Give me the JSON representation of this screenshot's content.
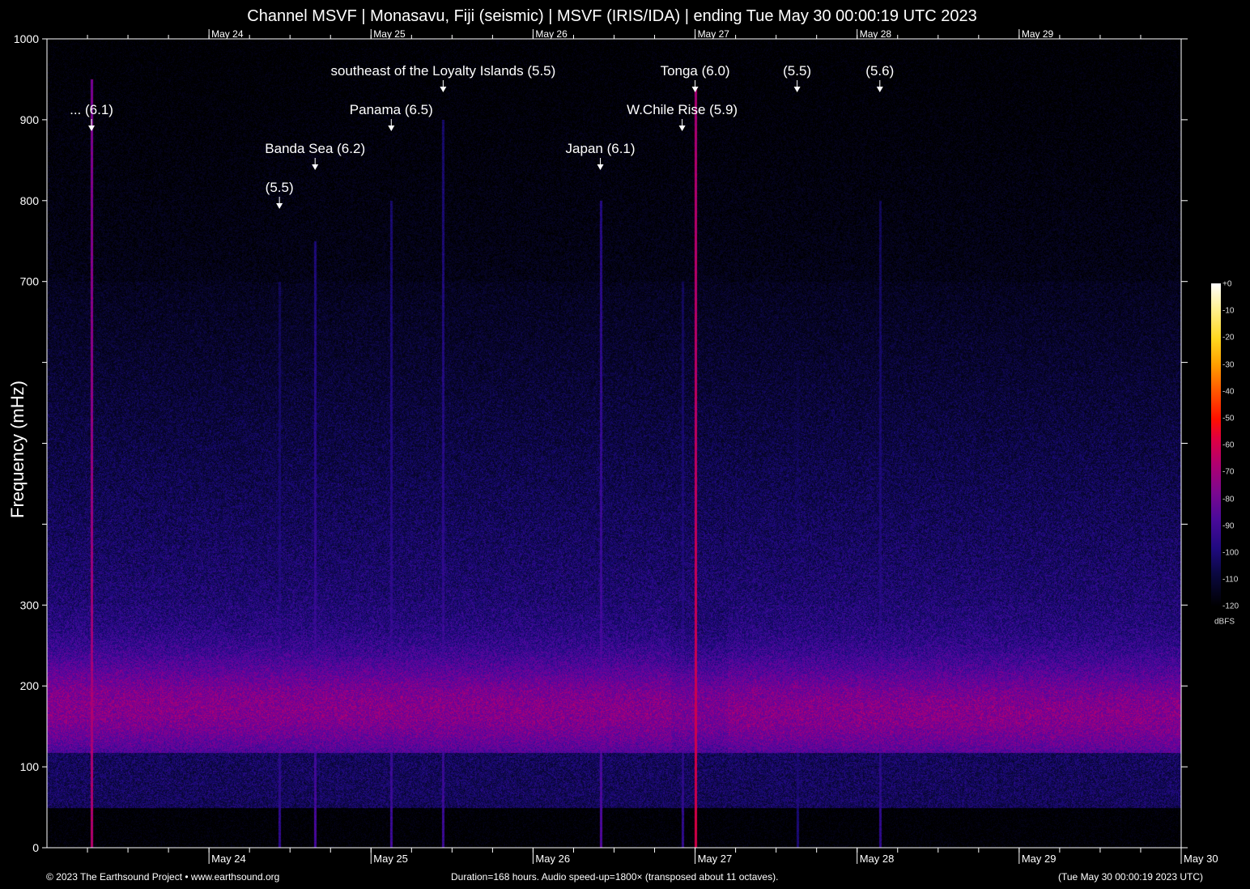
{
  "title": "Channel MSVF | Monasavu, Fiji (seismic) | MSVF (IRIS/IDA) | ending Tue May 30 00:00:19 UTC 2023",
  "footer": {
    "left": "© 2023 The Earthsound Project • www.earthsound.org",
    "center": "Duration=168 hours. Audio speed-up=1800× (transposed about 11 octaves).",
    "right": "(Tue May 30 00:00:19 2023 UTC)"
  },
  "chart_data": {
    "type": "heatmap",
    "title": "Channel MSVF | Monasavu, Fiji (seismic) | MSVF (IRIS/IDA) | ending Tue May 30 00:00:19 UTC 2023",
    "ylabel": "Frequency (mHz)",
    "xlabel": "",
    "x_range": [
      "2023-05-23 00:00",
      "2023-05-30 00:00"
    ],
    "ylim": [
      0,
      1000
    ],
    "y_ticks": [
      0,
      100,
      200,
      300,
      400,
      500,
      600,
      700,
      800,
      900,
      1000
    ],
    "y_tick_labels": [
      "0",
      "100",
      "200",
      "300",
      "",
      "",
      "",
      "700",
      "800",
      "900",
      "1000"
    ],
    "x_tick_labels": [
      "May 24",
      "May 25",
      "May 26",
      "May 27",
      "May 28",
      "May 29",
      "May 30"
    ],
    "x_tick_days": [
      1,
      2,
      3,
      4,
      5,
      6,
      7
    ],
    "colorbar": {
      "label": "dBFS",
      "range": [
        -120,
        0
      ],
      "ticks": [
        "+0",
        "-10",
        "-20",
        "-30",
        "-40",
        "-50",
        "-60",
        "-70",
        "-80",
        "-90",
        "-100",
        "-110",
        "-120"
      ]
    },
    "events": [
      {
        "label": "... (6.1)",
        "time": "2023-05-23 06:36"
      },
      {
        "label": "(5.5)",
        "time": "2023-05-24 10:26"
      },
      {
        "label": "Banda Sea (6.2)",
        "time": "2023-05-24 15:43"
      },
      {
        "label": "Panama (6.5)",
        "time": "2023-05-25 03:00"
      },
      {
        "label": "southeast of the Loyalty Islands (5.5)",
        "time": "2023-05-25 10:41"
      },
      {
        "label": "Japan (6.1)",
        "time": "2023-05-26 09:58"
      },
      {
        "label": "W.Chile Rise (5.9)",
        "time": "2023-05-26 22:05"
      },
      {
        "label": "Tonga (6.0)",
        "time": "2023-05-27 00:00"
      },
      {
        "label": "(5.5)",
        "time": "2023-05-27 15:07"
      },
      {
        "label": "(5.6)",
        "time": "2023-05-28 03:22"
      }
    ]
  }
}
